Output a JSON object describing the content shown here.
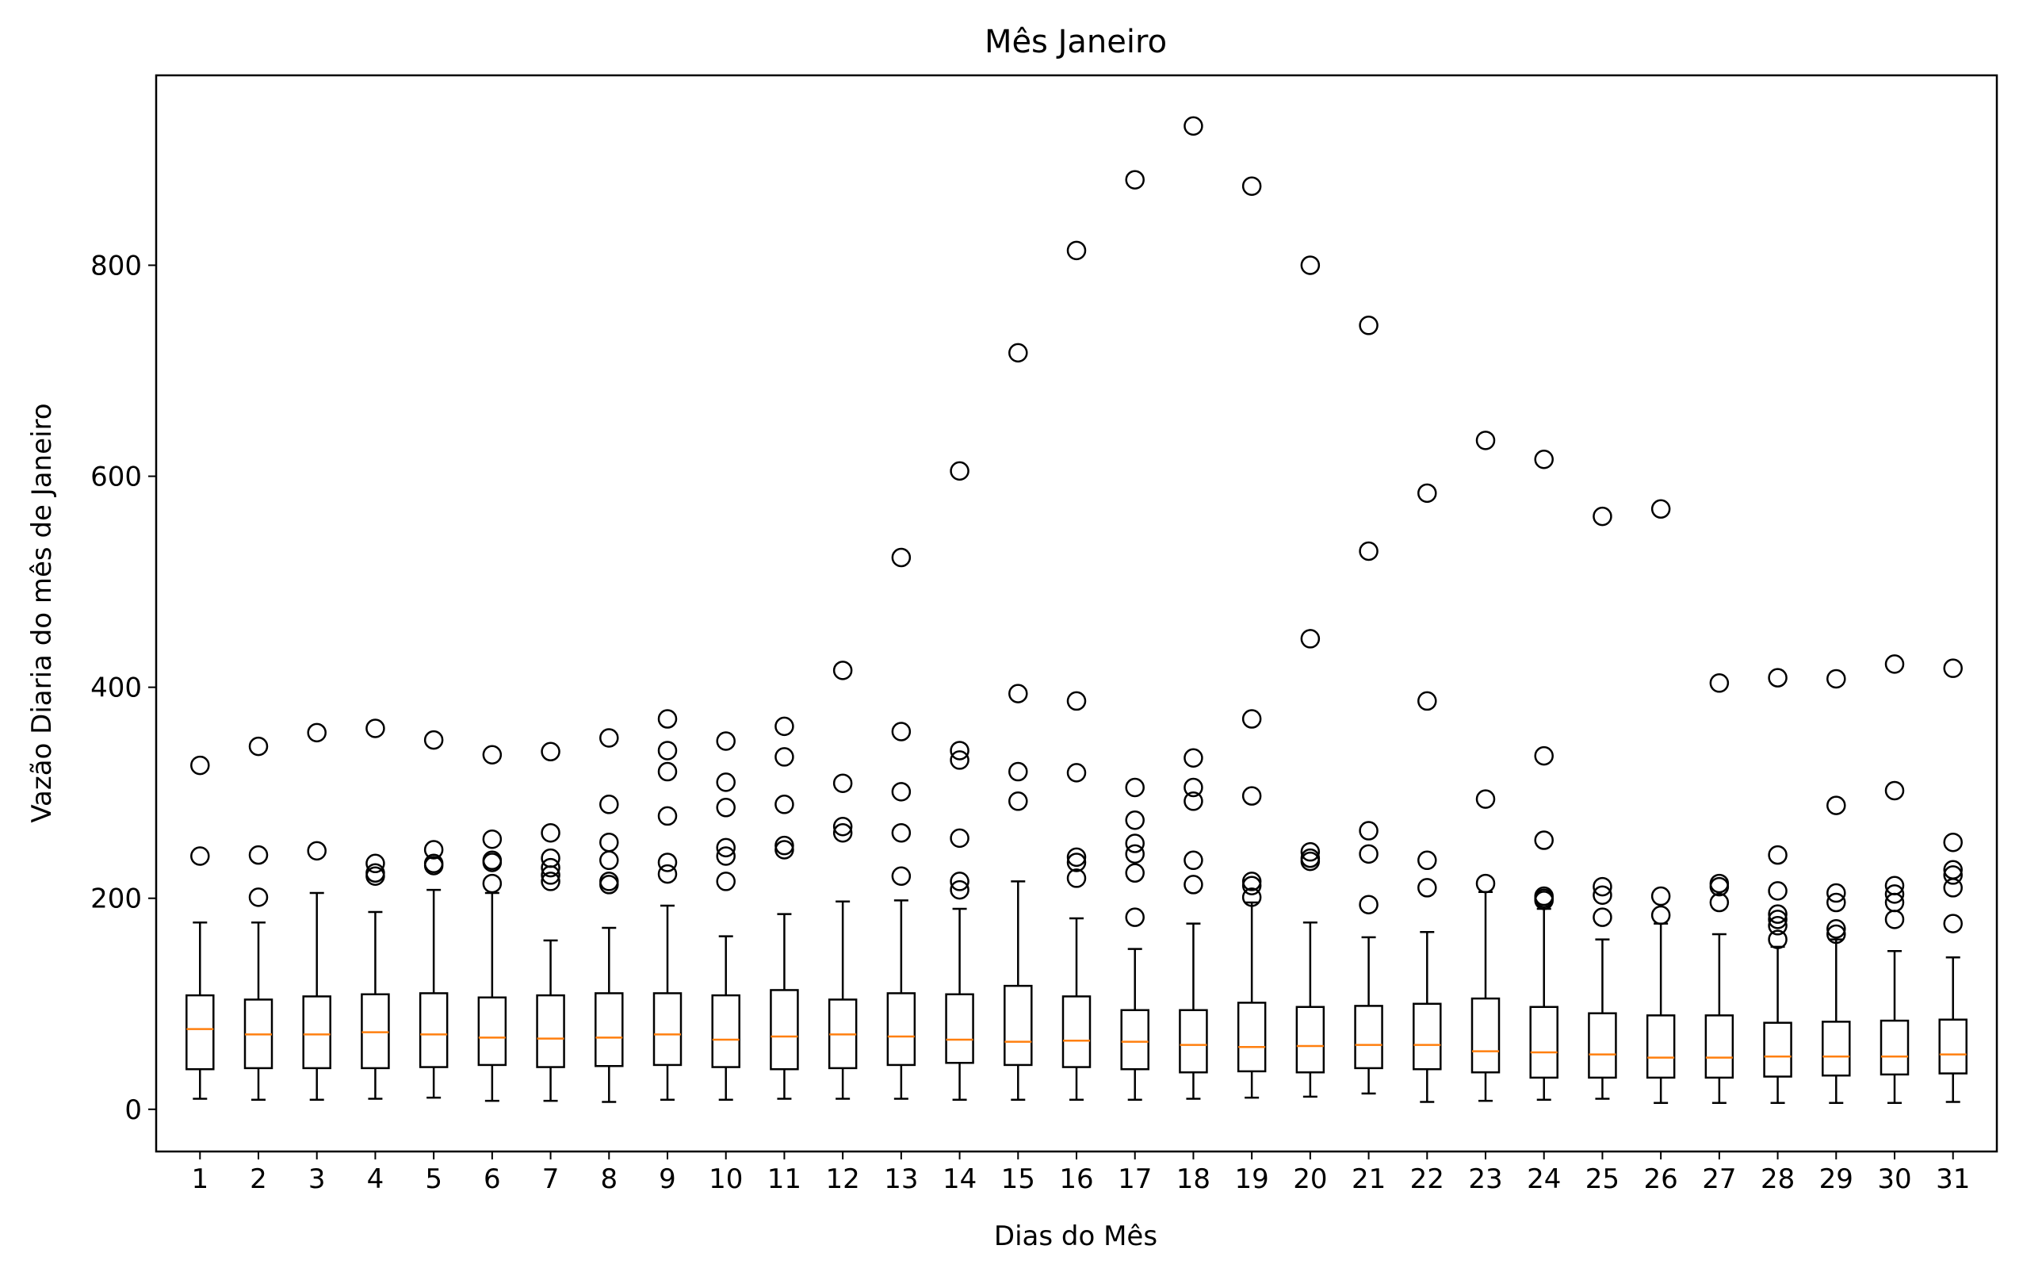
{
  "chart_data": {
    "type": "box",
    "title": "Mês Janeiro",
    "xlabel": "Dias do Mês",
    "ylabel": "Vazão Diaria do mês de Janeiro",
    "ylim": [
      -40,
      980
    ],
    "yticks": [
      0,
      200,
      400,
      600,
      800
    ],
    "categories": [
      "1",
      "2",
      "3",
      "4",
      "5",
      "6",
      "7",
      "8",
      "9",
      "10",
      "11",
      "12",
      "13",
      "14",
      "15",
      "16",
      "17",
      "18",
      "19",
      "20",
      "21",
      "22",
      "23",
      "24",
      "25",
      "26",
      "27",
      "28",
      "29",
      "30",
      "31"
    ],
    "box_color": "#000000",
    "median_color": "#ff7f0e",
    "grid": false,
    "boxes": [
      {
        "day": "1",
        "whislo": 10,
        "q1": 38,
        "med": 76,
        "q3": 108,
        "whishi": 177,
        "fliers": [
          240,
          326
        ]
      },
      {
        "day": "2",
        "whislo": 9,
        "q1": 39,
        "med": 71,
        "q3": 104,
        "whishi": 177,
        "fliers": [
          201,
          241,
          344
        ]
      },
      {
        "day": "3",
        "whislo": 9,
        "q1": 39,
        "med": 71,
        "q3": 107,
        "whishi": 205,
        "fliers": [
          245,
          357
        ]
      },
      {
        "day": "4",
        "whislo": 10,
        "q1": 39,
        "med": 73,
        "q3": 109,
        "whishi": 187,
        "fliers": [
          221,
          224,
          233,
          361
        ]
      },
      {
        "day": "5",
        "whislo": 11,
        "q1": 40,
        "med": 71,
        "q3": 110,
        "whishi": 208,
        "fliers": [
          231,
          233,
          246,
          350
        ]
      },
      {
        "day": "6",
        "whislo": 8,
        "q1": 42,
        "med": 68,
        "q3": 106,
        "whishi": 205,
        "fliers": [
          214,
          234,
          236,
          256,
          336
        ]
      },
      {
        "day": "7",
        "whislo": 8,
        "q1": 40,
        "med": 67,
        "q3": 108,
        "whishi": 160,
        "fliers": [
          216,
          222,
          229,
          238,
          262,
          339
        ]
      },
      {
        "day": "8",
        "whislo": 7,
        "q1": 41,
        "med": 68,
        "q3": 110,
        "whishi": 172,
        "fliers": [
          213,
          216,
          236,
          253,
          289,
          352
        ]
      },
      {
        "day": "9",
        "whislo": 9,
        "q1": 42,
        "med": 71,
        "q3": 110,
        "whishi": 193,
        "fliers": [
          223,
          234,
          278,
          320,
          340,
          370
        ]
      },
      {
        "day": "10",
        "whislo": 9,
        "q1": 40,
        "med": 66,
        "q3": 108,
        "whishi": 164,
        "fliers": [
          216,
          240,
          248,
          286,
          310,
          349
        ]
      },
      {
        "day": "11",
        "whislo": 10,
        "q1": 38,
        "med": 69,
        "q3": 113,
        "whishi": 185,
        "fliers": [
          246,
          250,
          289,
          334,
          363
        ]
      },
      {
        "day": "12",
        "whislo": 10,
        "q1": 39,
        "med": 71,
        "q3": 104,
        "whishi": 197,
        "fliers": [
          262,
          268,
          309,
          416
        ]
      },
      {
        "day": "13",
        "whislo": 10,
        "q1": 42,
        "med": 69,
        "q3": 110,
        "whishi": 198,
        "fliers": [
          221,
          262,
          301,
          358,
          523
        ]
      },
      {
        "day": "14",
        "whislo": 9,
        "q1": 44,
        "med": 66,
        "q3": 109,
        "whishi": 190,
        "fliers": [
          208,
          216,
          257,
          331,
          340,
          605
        ]
      },
      {
        "day": "15",
        "whislo": 9,
        "q1": 42,
        "med": 64,
        "q3": 117,
        "whishi": 216,
        "fliers": [
          292,
          320,
          394,
          717
        ]
      },
      {
        "day": "16",
        "whislo": 9,
        "q1": 40,
        "med": 65,
        "q3": 107,
        "whishi": 181,
        "fliers": [
          219,
          234,
          239,
          319,
          387,
          814
        ]
      },
      {
        "day": "17",
        "whislo": 9,
        "q1": 38,
        "med": 64,
        "q3": 94,
        "whishi": 152,
        "fliers": [
          182,
          224,
          242,
          252,
          274,
          305,
          881
        ]
      },
      {
        "day": "18",
        "whislo": 10,
        "q1": 35,
        "med": 61,
        "q3": 94,
        "whishi": 176,
        "fliers": [
          213,
          236,
          292,
          305,
          333,
          932
        ]
      },
      {
        "day": "19",
        "whislo": 11,
        "q1": 36,
        "med": 59,
        "q3": 101,
        "whishi": 196,
        "fliers": [
          201,
          212,
          216,
          297,
          370,
          875
        ]
      },
      {
        "day": "20",
        "whislo": 12,
        "q1": 35,
        "med": 60,
        "q3": 97,
        "whishi": 177,
        "fliers": [
          235,
          238,
          244,
          446,
          800
        ]
      },
      {
        "day": "21",
        "whislo": 15,
        "q1": 39,
        "med": 61,
        "q3": 98,
        "whishi": 163,
        "fliers": [
          194,
          242,
          264,
          529,
          743
        ]
      },
      {
        "day": "22",
        "whislo": 7,
        "q1": 38,
        "med": 61,
        "q3": 100,
        "whishi": 168,
        "fliers": [
          210,
          236,
          387,
          584
        ]
      },
      {
        "day": "23",
        "whislo": 8,
        "q1": 35,
        "med": 55,
        "q3": 105,
        "whishi": 206,
        "fliers": [
          214,
          294,
          634
        ]
      },
      {
        "day": "24",
        "whislo": 9,
        "q1": 30,
        "med": 54,
        "q3": 97,
        "whishi": 190,
        "fliers": [
          198,
          200,
          202,
          255,
          335,
          616
        ]
      },
      {
        "day": "25",
        "whislo": 10,
        "q1": 30,
        "med": 52,
        "q3": 91,
        "whishi": 161,
        "fliers": [
          182,
          203,
          211,
          562
        ]
      },
      {
        "day": "26",
        "whislo": 6,
        "q1": 30,
        "med": 49,
        "q3": 89,
        "whishi": 176,
        "fliers": [
          184,
          202,
          569
        ]
      },
      {
        "day": "27",
        "whislo": 6,
        "q1": 30,
        "med": 49,
        "q3": 89,
        "whishi": 166,
        "fliers": [
          196,
          211,
          214,
          404
        ]
      },
      {
        "day": "28",
        "whislo": 6,
        "q1": 31,
        "med": 50,
        "q3": 82,
        "whishi": 154,
        "fliers": [
          161,
          174,
          180,
          185,
          207,
          241,
          409
        ]
      },
      {
        "day": "29",
        "whislo": 6,
        "q1": 32,
        "med": 50,
        "q3": 83,
        "whishi": 161,
        "fliers": [
          166,
          171,
          196,
          205,
          288,
          408
        ]
      },
      {
        "day": "30",
        "whislo": 6,
        "q1": 33,
        "med": 50,
        "q3": 84,
        "whishi": 150,
        "fliers": [
          180,
          196,
          204,
          212,
          302,
          422
        ]
      },
      {
        "day": "31",
        "whislo": 7,
        "q1": 34,
        "med": 52,
        "q3": 85,
        "whishi": 144,
        "fliers": [
          176,
          210,
          222,
          227,
          253,
          418
        ]
      }
    ]
  }
}
